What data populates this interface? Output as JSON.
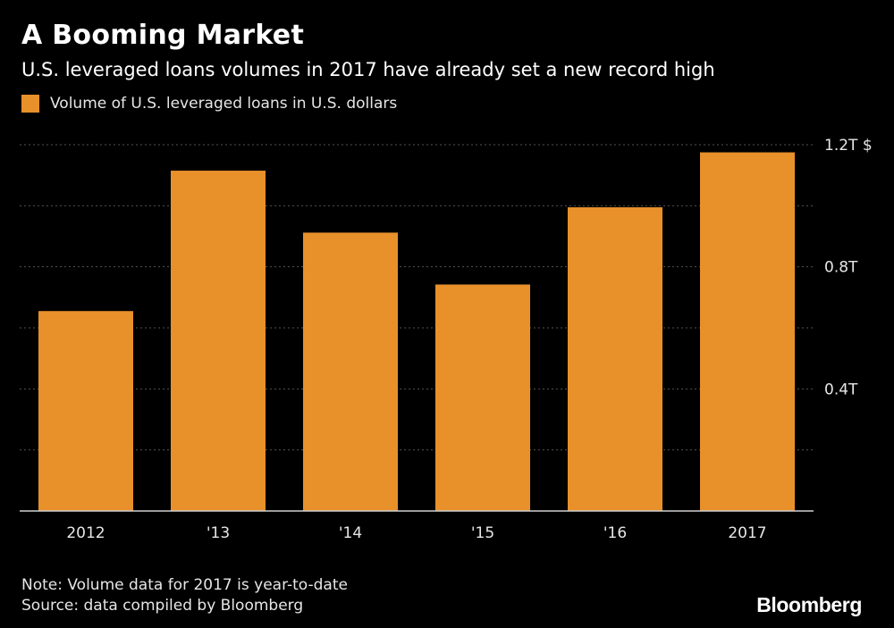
{
  "colors": {
    "background": "#000000",
    "bar": "#e8902a",
    "grid": "#555555",
    "text": "#ffffff"
  },
  "chart_data": {
    "type": "bar",
    "title": "A Booming Market",
    "subtitle": "U.S. leveraged loans volumes in 2017 have already set a new record high",
    "categories": [
      "2012",
      "'13",
      "'14",
      "'15",
      "'16",
      "2017"
    ],
    "series": [
      {
        "name": "Volume of U.S. leveraged loans in U.S. dollars",
        "values": [
          0.655,
          1.115,
          0.912,
          0.742,
          0.995,
          1.175
        ]
      }
    ],
    "ylim": [
      0,
      1.2
    ],
    "yticks": [
      {
        "value": 0.4,
        "label": "0.4T"
      },
      {
        "value": 0.8,
        "label": "0.8T"
      },
      {
        "value": 1.2,
        "label": "1.2T $"
      }
    ],
    "grid_lines": [
      0.2,
      0.4,
      0.6,
      0.8,
      1.0,
      1.2
    ],
    "grid": true,
    "y_axis_side": "right",
    "legend_position": "top-left"
  },
  "footer": {
    "note": "Note: Volume data for 2017 is year-to-date",
    "source": "Source: data compiled by Bloomberg",
    "brand": "Bloomberg"
  }
}
